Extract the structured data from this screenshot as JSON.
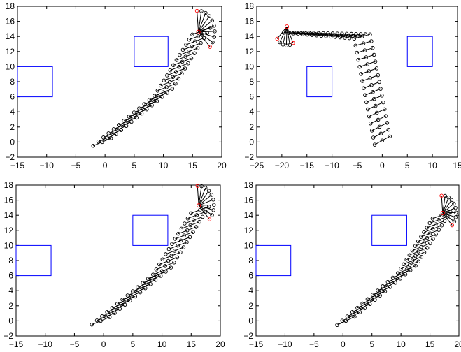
{
  "colors": {
    "axes": "#000000",
    "obstacle": "#0000ff",
    "trajectory": "#000000",
    "highlight": "#ff0000",
    "background": "#ffffff"
  },
  "chart_data": [
    {
      "type": "scatter",
      "title": "",
      "xlabel": "",
      "ylabel": "",
      "xlim": [
        -15,
        20
      ],
      "ylim": [
        -2,
        18
      ],
      "xticks": [
        -15,
        -10,
        -5,
        0,
        5,
        10,
        15,
        20
      ],
      "yticks": [
        -2,
        0,
        2,
        4,
        6,
        8,
        10,
        12,
        14,
        16,
        18
      ],
      "grid": false,
      "legend": "none",
      "obstacles": [
        {
          "x": [
            -15,
            -9
          ],
          "y": [
            6,
            10
          ]
        },
        {
          "x": [
            5,
            10.8
          ],
          "y": [
            10,
            14
          ]
        }
      ],
      "trajectory": {
        "start": [
          -0.5,
          0
        ],
        "turn": [
          10,
          6.6
        ],
        "end": [
          16.5,
          14.7
        ],
        "link_angle_start": 18,
        "link_angle_end": 16,
        "steps": 24
      },
      "fan": {
        "pivot": [
          16,
          14.6
        ],
        "link": 2.8,
        "angle_from": -45,
        "angle_to": 95,
        "count": 10
      }
    },
    {
      "type": "scatter",
      "title": "",
      "xlabel": "",
      "ylabel": "",
      "xlim": [
        -25,
        15
      ],
      "ylim": [
        -2,
        18
      ],
      "xticks": [
        -25,
        -20,
        -15,
        -10,
        -5,
        0,
        5,
        10,
        15
      ],
      "yticks": [
        -2,
        0,
        2,
        4,
        6,
        8,
        10,
        12,
        14,
        16,
        18
      ],
      "grid": false,
      "legend": "none",
      "obstacles": [
        {
          "x": [
            -15,
            -10
          ],
          "y": [
            6,
            10
          ]
        },
        {
          "x": [
            5,
            10
          ],
          "y": [
            10,
            14
          ]
        }
      ],
      "trajectory": {
        "start": [
          0,
          0.2
        ],
        "turn": [
          -4,
          14
        ],
        "end": [
          -18,
          14.5
        ],
        "link_angle_start": 20,
        "link_angle_end": 0,
        "steps": 30
      },
      "fan": {
        "pivot": [
          -19,
          15.3
        ],
        "link": 2.5,
        "angle_from": 220,
        "angle_to": 300,
        "count": 6
      }
    },
    {
      "type": "scatter",
      "title": "",
      "xlabel": "",
      "ylabel": "",
      "xlim": [
        -15,
        20
      ],
      "ylim": [
        -2,
        18
      ],
      "xticks": [
        -15,
        -10,
        -5,
        0,
        5,
        10,
        15,
        20
      ],
      "yticks": [
        -2,
        0,
        2,
        4,
        6,
        8,
        10,
        12,
        14,
        16,
        18
      ],
      "grid": false,
      "legend": "none",
      "obstacles": [
        {
          "x": [
            -15,
            -9
          ],
          "y": [
            6,
            10
          ]
        },
        {
          "x": [
            5,
            11
          ],
          "y": [
            10,
            14
          ]
        }
      ],
      "trajectory": {
        "start": [
          -0.5,
          0
        ],
        "turn": [
          10,
          6.6
        ],
        "end": [
          16.5,
          14.7
        ],
        "link_angle_start": 18,
        "link_angle_end": 16,
        "steps": 24
      },
      "fan": {
        "pivot": [
          16.3,
          15.3
        ],
        "link": 2.6,
        "angle_from": -45,
        "angle_to": 95,
        "count": 10
      }
    },
    {
      "type": "scatter",
      "title": "",
      "xlabel": "",
      "ylabel": "",
      "xlim": [
        -15,
        20
      ],
      "ylim": [
        -2,
        18
      ],
      "xticks": [
        -15,
        -10,
        -5,
        0,
        5,
        10,
        15,
        20
      ],
      "yticks": [
        -2,
        0,
        2,
        4,
        6,
        8,
        10,
        12,
        14,
        16,
        18
      ],
      "grid": false,
      "legend": "none",
      "obstacles": [
        {
          "x": [
            -15,
            -9
          ],
          "y": [
            6,
            10
          ]
        },
        {
          "x": [
            5,
            11
          ],
          "y": [
            10,
            14
          ]
        }
      ],
      "trajectory": {
        "start": [
          0.5,
          0
        ],
        "turn": [
          11,
          6.8
        ],
        "end": [
          17,
          14
        ],
        "link_angle_start": 20,
        "link_angle_end": 16,
        "steps": 24
      },
      "fan": {
        "pivot": [
          17.2,
          14.3
        ],
        "link": 2.3,
        "angle_from": -45,
        "angle_to": 95,
        "count": 10
      }
    }
  ]
}
